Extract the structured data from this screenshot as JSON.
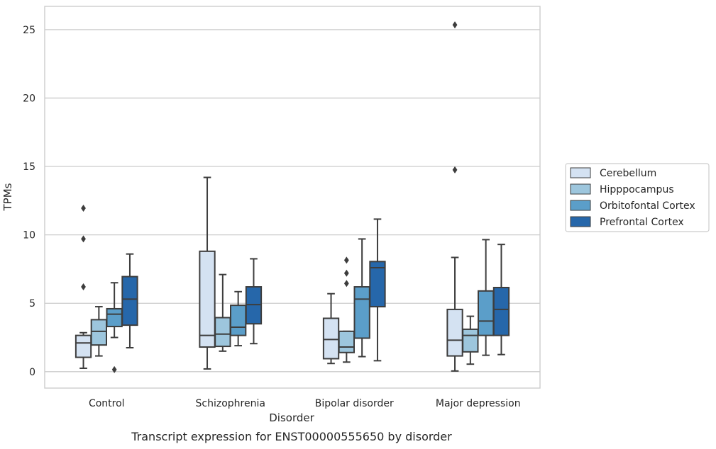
{
  "chart_data": {
    "type": "box",
    "xlabel": "Disorder",
    "ylabel": "TPMs",
    "caption": "Transcript expression for ENST00000555650 by disorder",
    "categories": [
      "Control",
      "Schizophrenia",
      "Bipolar disorder",
      "Major depression"
    ],
    "ylim": [
      -1.2,
      26.7
    ],
    "yticks": [
      0,
      5,
      10,
      15,
      20,
      25
    ],
    "grid": "horizontal",
    "legend": {
      "position": "right",
      "entries": [
        "Cerebellum",
        "Hipppocampus",
        "Orbitofontal Cortex",
        "Prefrontal Cortex"
      ]
    },
    "colors": [
      "#d4e2f2",
      "#9dc6dd",
      "#5b9ec9",
      "#2667aa"
    ],
    "series": [
      {
        "name": "Cerebellum",
        "boxes": [
          {
            "whisker_low": 0.25,
            "q1": 1.05,
            "median": 2.1,
            "q3": 2.65,
            "whisker_high": 2.85,
            "outliers": [
              6.2,
              9.7,
              11.95
            ]
          },
          {
            "whisker_low": 0.2,
            "q1": 1.8,
            "median": 2.65,
            "q3": 8.8,
            "whisker_high": 14.2,
            "outliers": []
          },
          {
            "whisker_low": 0.6,
            "q1": 0.95,
            "median": 2.35,
            "q3": 3.9,
            "whisker_high": 5.7,
            "outliers": []
          },
          {
            "whisker_low": 0.05,
            "q1": 1.15,
            "median": 2.3,
            "q3": 4.55,
            "whisker_high": 8.35,
            "outliers": [
              14.75,
              25.35
            ]
          }
        ]
      },
      {
        "name": "Hipppocampus",
        "boxes": [
          {
            "whisker_low": 1.15,
            "q1": 1.95,
            "median": 2.95,
            "q3": 3.8,
            "whisker_high": 4.75,
            "outliers": []
          },
          {
            "whisker_low": 1.5,
            "q1": 1.85,
            "median": 2.75,
            "q3": 3.95,
            "whisker_high": 7.1,
            "outliers": []
          },
          {
            "whisker_low": 0.7,
            "q1": 1.4,
            "median": 1.8,
            "q3": 2.95,
            "whisker_high": 2.95,
            "outliers": [
              6.45,
              7.2,
              8.15
            ]
          },
          {
            "whisker_low": 0.55,
            "q1": 1.45,
            "median": 2.65,
            "q3": 3.1,
            "whisker_high": 4.05,
            "outliers": []
          }
        ]
      },
      {
        "name": "Orbitofontal Cortex",
        "boxes": [
          {
            "whisker_low": 2.5,
            "q1": 3.3,
            "median": 4.2,
            "q3": 4.6,
            "whisker_high": 6.5,
            "outliers": [
              0.15
            ]
          },
          {
            "whisker_low": 1.9,
            "q1": 2.65,
            "median": 3.25,
            "q3": 4.85,
            "whisker_high": 5.85,
            "outliers": []
          },
          {
            "whisker_low": 1.1,
            "q1": 2.45,
            "median": 5.3,
            "q3": 6.2,
            "whisker_high": 9.7,
            "outliers": []
          },
          {
            "whisker_low": 1.2,
            "q1": 2.65,
            "median": 3.7,
            "q3": 5.9,
            "whisker_high": 9.65,
            "outliers": []
          }
        ]
      },
      {
        "name": "Prefrontal Cortex",
        "boxes": [
          {
            "whisker_low": 1.75,
            "q1": 3.4,
            "median": 5.3,
            "q3": 6.95,
            "whisker_high": 8.6,
            "outliers": []
          },
          {
            "whisker_low": 2.05,
            "q1": 3.5,
            "median": 4.9,
            "q3": 6.2,
            "whisker_high": 8.25,
            "outliers": []
          },
          {
            "whisker_low": 0.8,
            "q1": 4.75,
            "median": 7.6,
            "q3": 8.05,
            "whisker_high": 11.15,
            "outliers": []
          },
          {
            "whisker_low": 1.25,
            "q1": 2.65,
            "median": 4.55,
            "q3": 6.15,
            "whisker_high": 9.3,
            "outliers": []
          }
        ]
      }
    ]
  }
}
